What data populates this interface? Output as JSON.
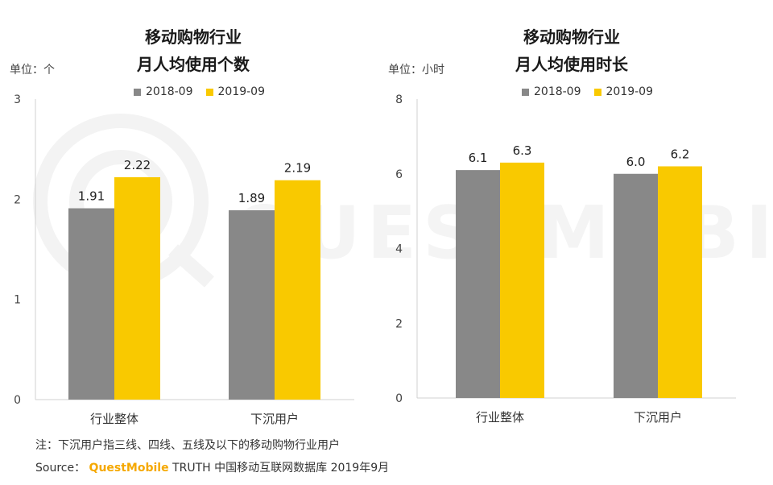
{
  "colors": {
    "series_2018": "#888888",
    "series_2019": "#f9c900",
    "axis": "#d0d0d0",
    "brand": "#f5a800",
    "watermark": "#f2f2f2"
  },
  "watermark_text": "QUESTMOBILE",
  "chart_data": [
    {
      "type": "bar",
      "title_line1": "移动购物行业",
      "title_line2": "月人均使用个数",
      "unit_label": "单位：个",
      "categories": [
        "行业整体",
        "下沉用户"
      ],
      "series": [
        {
          "name": "2018-09",
          "values": [
            1.91,
            1.89
          ],
          "labels": [
            "1.91",
            "1.89"
          ]
        },
        {
          "name": "2019-09",
          "values": [
            2.22,
            2.19
          ],
          "labels": [
            "2.22",
            "2.19"
          ]
        }
      ],
      "ylim": [
        0,
        3
      ],
      "yticks": [
        "0",
        "1",
        "2",
        "3"
      ],
      "legend_position": "top-center"
    },
    {
      "type": "bar",
      "title_line1": "移动购物行业",
      "title_line2": "月人均使用时长",
      "unit_label": "单位：小时",
      "categories": [
        "行业整体",
        "下沉用户"
      ],
      "series": [
        {
          "name": "2018-09",
          "values": [
            6.1,
            6.0
          ],
          "labels": [
            "6.1",
            "6.0"
          ]
        },
        {
          "name": "2019-09",
          "values": [
            6.3,
            6.2
          ],
          "labels": [
            "6.3",
            "6.2"
          ]
        }
      ],
      "ylim": [
        0,
        8
      ],
      "yticks": [
        "0",
        "2",
        "4",
        "6",
        "8"
      ],
      "legend_position": "top-center"
    }
  ],
  "footer": {
    "note": "注：下沉用户指三线、四线、五线及以下的移动购物行业用户",
    "source_prefix": "Source：",
    "source_brand": "QuestMobile",
    "source_rest": " TRUTH 中国移动互联网数据库 2019年9月"
  }
}
